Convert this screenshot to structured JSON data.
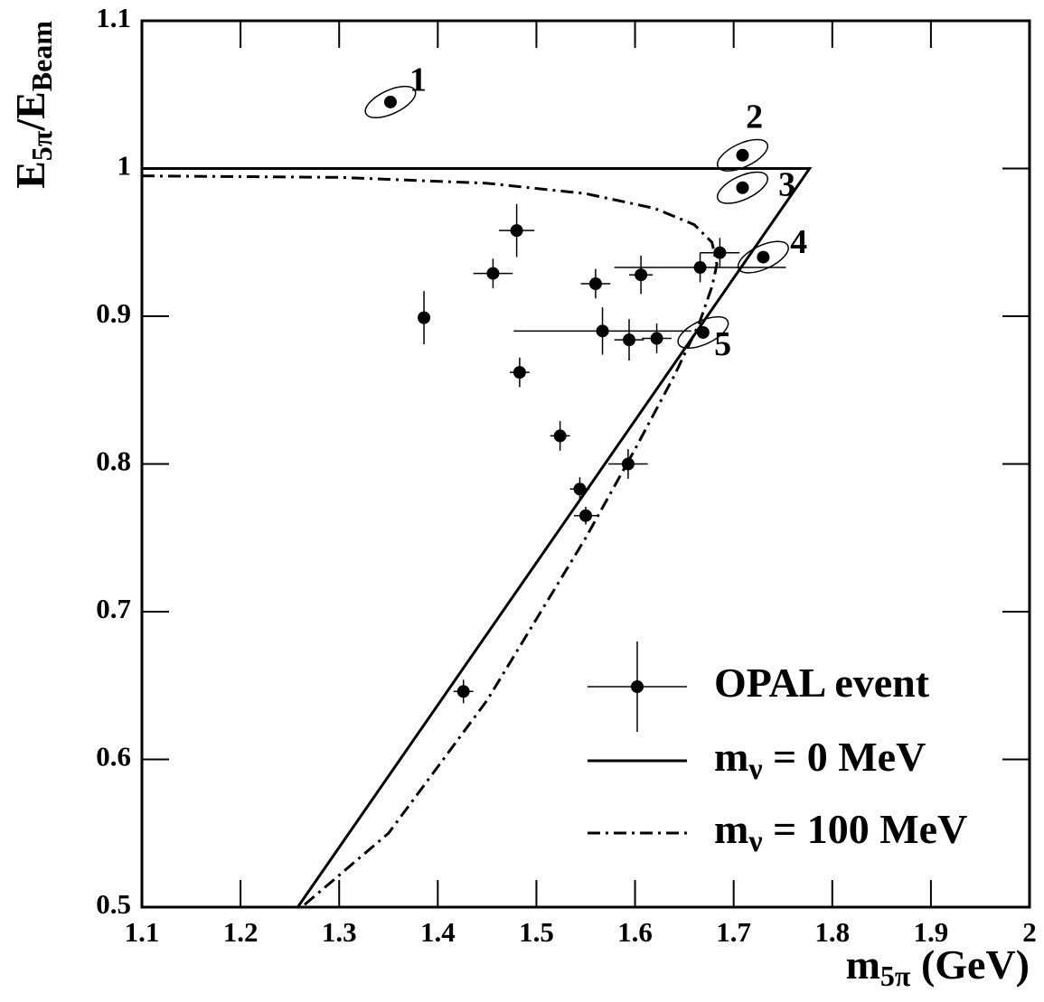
{
  "chart_data": {
    "type": "scatter",
    "xlabel": [
      "m",
      "5π",
      " (GeV)"
    ],
    "ylabel": [
      "E",
      "5π",
      "/E",
      "Beam"
    ],
    "xlim": [
      1.1,
      2.0
    ],
    "xticks": [
      1.1,
      1.2,
      1.3,
      1.4,
      1.5,
      1.6,
      1.7,
      1.8,
      1.9,
      2
    ],
    "ylim": [
      0.5,
      1.1
    ],
    "yticks": [
      0.5,
      0.6,
      0.7,
      0.8,
      0.9,
      1,
      1.1
    ],
    "legend": "lower right",
    "series": [
      {
        "type": "scatter",
        "name": [
          "OPAL event"
        ],
        "color": "#000000",
        "x": [
          1.352,
          1.709,
          1.709,
          1.73,
          1.669,
          1.386,
          1.48,
          1.456,
          1.483,
          1.524,
          1.544,
          1.55,
          1.56,
          1.567,
          1.594,
          1.593,
          1.606,
          1.622,
          1.666,
          1.686,
          1.426
        ],
        "values": [
          1.045,
          1.009,
          0.987,
          0.94,
          0.889,
          0.899,
          0.958,
          0.929,
          0.862,
          0.819,
          0.783,
          0.765,
          0.922,
          0.89,
          0.884,
          0.8,
          0.928,
          0.885,
          0.933,
          0.943,
          0.646
        ],
        "xerr": [
          0,
          0,
          0,
          0,
          0,
          0.005,
          0.018,
          0.02,
          0.01,
          0.01,
          0.01,
          0.012,
          0.015,
          0.09,
          0.015,
          0.02,
          0.012,
          0.015,
          0.087,
          0.02,
          0.01
        ],
        "yerr": [
          0,
          0,
          0,
          0,
          0,
          0.018,
          0.018,
          0.01,
          0.01,
          0.01,
          0.008,
          0.006,
          0.01,
          0.016,
          0.014,
          0.01,
          0.013,
          0.01,
          0.01,
          0.01,
          0.008
        ]
      },
      {
        "type": "line",
        "name": [
          "m",
          "ν",
          " = 0 MeV"
        ],
        "color": "#000000",
        "dash": "solid",
        "x": [
          1.1,
          1.777,
          1.258
        ],
        "values": [
          1.0,
          1.0,
          0.5
        ]
      },
      {
        "type": "line",
        "name": [
          "m",
          "ν",
          " = 100 MeV"
        ],
        "color": "#000000",
        "dash": "dashdot",
        "x": [
          1.1,
          1.3,
          1.45,
          1.55,
          1.62,
          1.66,
          1.678,
          1.683,
          1.678,
          1.665,
          1.64,
          1.6,
          1.55,
          1.45,
          1.35,
          1.262
        ],
        "values": [
          0.995,
          0.994,
          0.99,
          0.983,
          0.973,
          0.962,
          0.95,
          0.935,
          0.92,
          0.895,
          0.86,
          0.81,
          0.75,
          0.64,
          0.55,
          0.5
        ]
      }
    ],
    "annotations": [
      {
        "text": "1",
        "x": 1.38,
        "y": 1.058
      },
      {
        "text": "2",
        "x": 1.721,
        "y": 1.033
      },
      {
        "text": "3",
        "x": 1.754,
        "y": 0.987
      },
      {
        "text": "4",
        "x": 1.766,
        "y": 0.948
      },
      {
        "text": "5",
        "x": 1.689,
        "y": 0.879
      }
    ]
  }
}
